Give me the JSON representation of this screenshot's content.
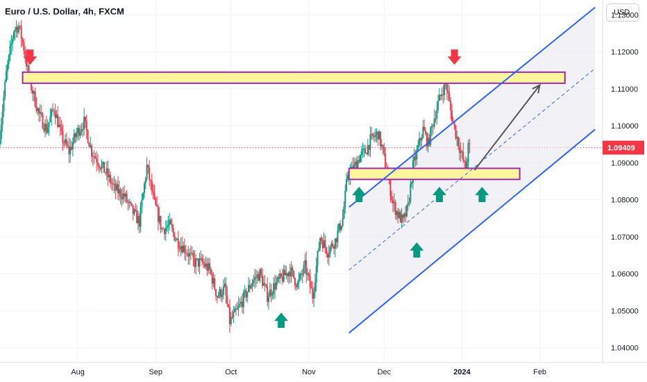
{
  "header": {
    "symbol_title": "Euro / U.S. Dollar, 4h, FXCM",
    "currency_button": "USD"
  },
  "colors": {
    "up_candle": "#089981",
    "down_candle": "#f23645",
    "channel_line": "#2962ff",
    "zone_fill": "#fff59d",
    "zone_border": "#9c27b0",
    "price_tag": "#f23645",
    "arrow_up": "#089981",
    "arrow_down": "#f23645",
    "projection_arrow": "#555555"
  },
  "chart_data": {
    "type": "candlestick",
    "instrument": "Euro / U.S. Dollar",
    "timeframe": "4h",
    "source": "FXCM",
    "ylim": [
      1.036,
      1.134
    ],
    "y_ticks": [
      "1.13000",
      "1.12000",
      "1.11000",
      "1.10000",
      "1.09000",
      "1.08000",
      "1.07000",
      "1.06000",
      "1.05000",
      "1.04000"
    ],
    "x_ticks": [
      {
        "label": "Aug",
        "day": 31,
        "bold": false
      },
      {
        "label": "Sep",
        "day": 62,
        "bold": false
      },
      {
        "label": "Oct",
        "day": 92,
        "bold": false
      },
      {
        "label": "Nov",
        "day": 123,
        "bold": false
      },
      {
        "label": "Dec",
        "day": 153,
        "bold": false
      },
      {
        "label": "2024",
        "day": 184,
        "bold": true
      },
      {
        "label": "Feb",
        "day": 215,
        "bold": false
      }
    ],
    "xlim_days": [
      0,
      240
    ],
    "last_price": "1.09409",
    "last_price_value": 1.09409,
    "price_path": [
      [
        0,
        1.095
      ],
      [
        3,
        1.114
      ],
      [
        6,
        1.126
      ],
      [
        8,
        1.127
      ],
      [
        10,
        1.121
      ],
      [
        12,
        1.113
      ],
      [
        16,
        1.103
      ],
      [
        19,
        1.099
      ],
      [
        22,
        1.105
      ],
      [
        25,
        1.097
      ],
      [
        28,
        1.093
      ],
      [
        31,
        1.098
      ],
      [
        34,
        1.101
      ],
      [
        37,
        1.093
      ],
      [
        40,
        1.09
      ],
      [
        43,
        1.087
      ],
      [
        46,
        1.083
      ],
      [
        50,
        1.081
      ],
      [
        53,
        1.077
      ],
      [
        56,
        1.074
      ],
      [
        59,
        1.089
      ],
      [
        62,
        1.079
      ],
      [
        65,
        1.072
      ],
      [
        68,
        1.073
      ],
      [
        71,
        1.069
      ],
      [
        75,
        1.066
      ],
      [
        78,
        1.063
      ],
      [
        81,
        1.063
      ],
      [
        84,
        1.061
      ],
      [
        87,
        1.054
      ],
      [
        90,
        1.056
      ],
      [
        92,
        1.047
      ],
      [
        95,
        1.05
      ],
      [
        98,
        1.054
      ],
      [
        101,
        1.058
      ],
      [
        104,
        1.06
      ],
      [
        107,
        1.054
      ],
      [
        110,
        1.057
      ],
      [
        113,
        1.059
      ],
      [
        116,
        1.061
      ],
      [
        119,
        1.057
      ],
      [
        122,
        1.062
      ],
      [
        125,
        1.054
      ],
      [
        128,
        1.07
      ],
      [
        131,
        1.066
      ],
      [
        134,
        1.069
      ],
      [
        137,
        1.075
      ],
      [
        139,
        1.087
      ],
      [
        141,
        1.088
      ],
      [
        144,
        1.092
      ],
      [
        146,
        1.093
      ],
      [
        148,
        1.096
      ],
      [
        151,
        1.098
      ],
      [
        153,
        1.093
      ],
      [
        155,
        1.086
      ],
      [
        157,
        1.079
      ],
      [
        159,
        1.076
      ],
      [
        161,
        1.074
      ],
      [
        163,
        1.078
      ],
      [
        165,
        1.089
      ],
      [
        167,
        1.094
      ],
      [
        169,
        1.099
      ],
      [
        171,
        1.095
      ],
      [
        173,
        1.101
      ],
      [
        175,
        1.106
      ],
      [
        178,
        1.112
      ],
      [
        180,
        1.104
      ],
      [
        182,
        1.098
      ],
      [
        184,
        1.093
      ],
      [
        186,
        1.088
      ],
      [
        187,
        1.094
      ]
    ],
    "channel": {
      "lower": [
        [
          139,
          1.044
        ],
        [
          237,
          1.099
        ]
      ],
      "upper": [
        [
          139,
          1.078
        ],
        [
          237,
          1.132
        ]
      ],
      "midline_dashed": true
    },
    "resistance_zone": {
      "y_low": 1.1115,
      "y_high": 1.1145,
      "day_start": 9,
      "day_end": 225
    },
    "support_zone": {
      "y_low": 1.0855,
      "y_high": 1.0885,
      "day_start": 139,
      "day_end": 207
    },
    "down_arrows": [
      {
        "day": 12,
        "price": 1.1165
      },
      {
        "day": 181,
        "price": 1.1165
      }
    ],
    "up_arrows": [
      {
        "day": 112,
        "price": 1.0495
      },
      {
        "day": 143,
        "price": 1.0835
      },
      {
        "day": 166,
        "price": 1.0685
      },
      {
        "day": 175,
        "price": 1.0835
      },
      {
        "day": 192,
        "price": 1.0835
      }
    ],
    "projection_arrow": {
      "from": [
        189,
        1.088
      ],
      "to": [
        215,
        1.111
      ]
    }
  }
}
